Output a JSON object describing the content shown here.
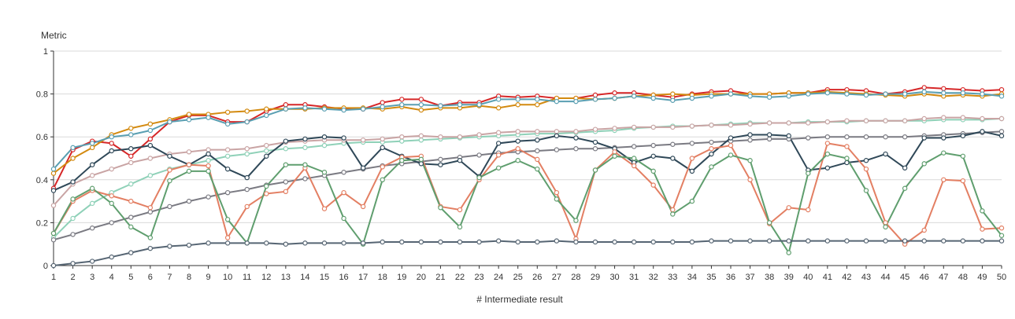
{
  "chart_data": {
    "type": "line",
    "ylabel": "Metric",
    "xlabel": "# Intermediate result",
    "ylim": [
      0,
      1
    ],
    "y_ticks": [
      "0",
      "0.2",
      "0.4",
      "0.6",
      "0.8",
      "1"
    ],
    "grid": true,
    "x": [
      1,
      2,
      3,
      4,
      5,
      6,
      7,
      8,
      9,
      10,
      11,
      12,
      13,
      14,
      15,
      16,
      17,
      18,
      19,
      20,
      21,
      22,
      23,
      24,
      25,
      26,
      27,
      28,
      29,
      30,
      31,
      32,
      33,
      34,
      35,
      36,
      37,
      38,
      39,
      40,
      41,
      42,
      43,
      44,
      45,
      46,
      47,
      48,
      49,
      50
    ],
    "series": [
      {
        "color": "#d62728",
        "values": [
          0.36,
          0.54,
          0.58,
          0.57,
          0.51,
          0.59,
          0.67,
          0.7,
          0.7,
          0.67,
          0.67,
          0.72,
          0.75,
          0.75,
          0.74,
          0.73,
          0.73,
          0.76,
          0.775,
          0.775,
          0.745,
          0.76,
          0.76,
          0.79,
          0.785,
          0.79,
          0.78,
          0.78,
          0.795,
          0.805,
          0.805,
          0.795,
          0.785,
          0.8,
          0.81,
          0.815,
          0.8,
          0.8,
          0.805,
          0.805,
          0.82,
          0.82,
          0.815,
          0.8,
          0.81,
          0.83,
          0.825,
          0.82,
          0.815,
          0.82
        ]
      },
      {
        "color": "#d38a10",
        "values": [
          0.43,
          0.5,
          0.55,
          0.61,
          0.64,
          0.66,
          0.68,
          0.705,
          0.705,
          0.715,
          0.72,
          0.73,
          0.73,
          0.73,
          0.735,
          0.735,
          0.735,
          0.73,
          0.74,
          0.725,
          0.735,
          0.735,
          0.745,
          0.735,
          0.75,
          0.75,
          0.78,
          0.78,
          0.775,
          0.78,
          0.79,
          0.795,
          0.8,
          0.795,
          0.8,
          0.8,
          0.8,
          0.8,
          0.805,
          0.805,
          0.81,
          0.805,
          0.8,
          0.795,
          0.79,
          0.8,
          0.79,
          0.795,
          0.79,
          0.8
        ]
      },
      {
        "color": "#5a9fb2",
        "values": [
          0.45,
          0.55,
          0.57,
          0.6,
          0.61,
          0.63,
          0.67,
          0.68,
          0.69,
          0.66,
          0.67,
          0.7,
          0.73,
          0.735,
          0.73,
          0.725,
          0.73,
          0.74,
          0.75,
          0.75,
          0.745,
          0.75,
          0.75,
          0.775,
          0.775,
          0.775,
          0.765,
          0.765,
          0.775,
          0.78,
          0.79,
          0.78,
          0.77,
          0.78,
          0.79,
          0.8,
          0.79,
          0.785,
          0.79,
          0.8,
          0.805,
          0.8,
          0.795,
          0.8,
          0.8,
          0.81,
          0.805,
          0.805,
          0.8,
          0.79
        ]
      },
      {
        "color": "#8fd1b8",
        "values": [
          0.13,
          0.22,
          0.29,
          0.34,
          0.38,
          0.42,
          0.45,
          0.47,
          0.49,
          0.51,
          0.52,
          0.535,
          0.545,
          0.55,
          0.56,
          0.57,
          0.575,
          0.575,
          0.58,
          0.585,
          0.59,
          0.595,
          0.6,
          0.605,
          0.61,
          0.615,
          0.615,
          0.62,
          0.625,
          0.63,
          0.64,
          0.645,
          0.65,
          0.65,
          0.655,
          0.66,
          0.665,
          0.665,
          0.665,
          0.67,
          0.67,
          0.67,
          0.675,
          0.675,
          0.675,
          0.675,
          0.68,
          0.68,
          0.68,
          0.685
        ]
      },
      {
        "color": "#c9a4a4",
        "values": [
          0.28,
          0.38,
          0.42,
          0.45,
          0.48,
          0.5,
          0.52,
          0.53,
          0.54,
          0.54,
          0.545,
          0.56,
          0.575,
          0.58,
          0.585,
          0.585,
          0.585,
          0.59,
          0.6,
          0.605,
          0.6,
          0.6,
          0.61,
          0.62,
          0.625,
          0.625,
          0.625,
          0.625,
          0.635,
          0.64,
          0.645,
          0.645,
          0.645,
          0.65,
          0.655,
          0.655,
          0.66,
          0.665,
          0.665,
          0.665,
          0.67,
          0.675,
          0.675,
          0.675,
          0.675,
          0.685,
          0.69,
          0.69,
          0.685,
          0.685
        ]
      },
      {
        "color": "#7a7a82",
        "values": [
          0.12,
          0.145,
          0.175,
          0.2,
          0.225,
          0.25,
          0.275,
          0.3,
          0.32,
          0.34,
          0.355,
          0.375,
          0.39,
          0.405,
          0.42,
          0.435,
          0.45,
          0.465,
          0.475,
          0.485,
          0.495,
          0.505,
          0.515,
          0.525,
          0.53,
          0.535,
          0.54,
          0.545,
          0.545,
          0.55,
          0.555,
          0.56,
          0.565,
          0.57,
          0.575,
          0.58,
          0.585,
          0.59,
          0.59,
          0.595,
          0.6,
          0.6,
          0.6,
          0.6,
          0.6,
          0.605,
          0.61,
          0.615,
          0.62,
          0.625
        ]
      },
      {
        "color": "#2f4858",
        "values": [
          0.35,
          0.39,
          0.47,
          0.535,
          0.545,
          0.56,
          0.51,
          0.47,
          0.52,
          0.45,
          0.41,
          0.51,
          0.58,
          0.59,
          0.6,
          0.595,
          0.455,
          0.55,
          0.51,
          0.475,
          0.47,
          0.49,
          0.415,
          0.57,
          0.58,
          0.585,
          0.605,
          0.595,
          0.575,
          0.545,
          0.48,
          0.51,
          0.5,
          0.44,
          0.52,
          0.595,
          0.61,
          0.61,
          0.605,
          0.445,
          0.455,
          0.48,
          0.49,
          0.52,
          0.455,
          0.595,
          0.595,
          0.605,
          0.625,
          0.605
        ]
      },
      {
        "color": "#e37f63",
        "values": [
          0.15,
          0.3,
          0.35,
          0.325,
          0.3,
          0.27,
          0.445,
          0.47,
          0.465,
          0.13,
          0.275,
          0.335,
          0.345,
          0.455,
          0.265,
          0.34,
          0.275,
          0.46,
          0.505,
          0.51,
          0.275,
          0.26,
          0.4,
          0.515,
          0.545,
          0.495,
          0.34,
          0.125,
          0.445,
          0.53,
          0.465,
          0.375,
          0.26,
          0.5,
          0.545,
          0.56,
          0.4,
          0.195,
          0.27,
          0.26,
          0.57,
          0.555,
          0.45,
          0.2,
          0.1,
          0.165,
          0.4,
          0.395,
          0.17,
          0.175
        ]
      },
      {
        "color": "#5f9e6e",
        "values": [
          0.15,
          0.31,
          0.36,
          0.29,
          0.18,
          0.13,
          0.395,
          0.44,
          0.44,
          0.215,
          0.105,
          0.37,
          0.47,
          0.47,
          0.435,
          0.22,
          0.1,
          0.4,
          0.49,
          0.495,
          0.27,
          0.18,
          0.41,
          0.455,
          0.49,
          0.45,
          0.31,
          0.21,
          0.445,
          0.51,
          0.5,
          0.44,
          0.24,
          0.3,
          0.46,
          0.515,
          0.49,
          0.2,
          0.06,
          0.43,
          0.52,
          0.5,
          0.35,
          0.18,
          0.36,
          0.475,
          0.525,
          0.51,
          0.255,
          0.14
        ]
      },
      {
        "color": "#566573",
        "values": [
          0.0,
          0.01,
          0.02,
          0.04,
          0.06,
          0.08,
          0.09,
          0.095,
          0.105,
          0.105,
          0.105,
          0.105,
          0.1,
          0.105,
          0.105,
          0.105,
          0.105,
          0.11,
          0.11,
          0.11,
          0.11,
          0.11,
          0.11,
          0.115,
          0.11,
          0.11,
          0.115,
          0.11,
          0.11,
          0.11,
          0.11,
          0.11,
          0.11,
          0.11,
          0.115,
          0.115,
          0.115,
          0.115,
          0.115,
          0.115,
          0.115,
          0.115,
          0.115,
          0.115,
          0.115,
          0.115,
          0.115,
          0.115,
          0.115,
          0.115
        ]
      }
    ]
  }
}
